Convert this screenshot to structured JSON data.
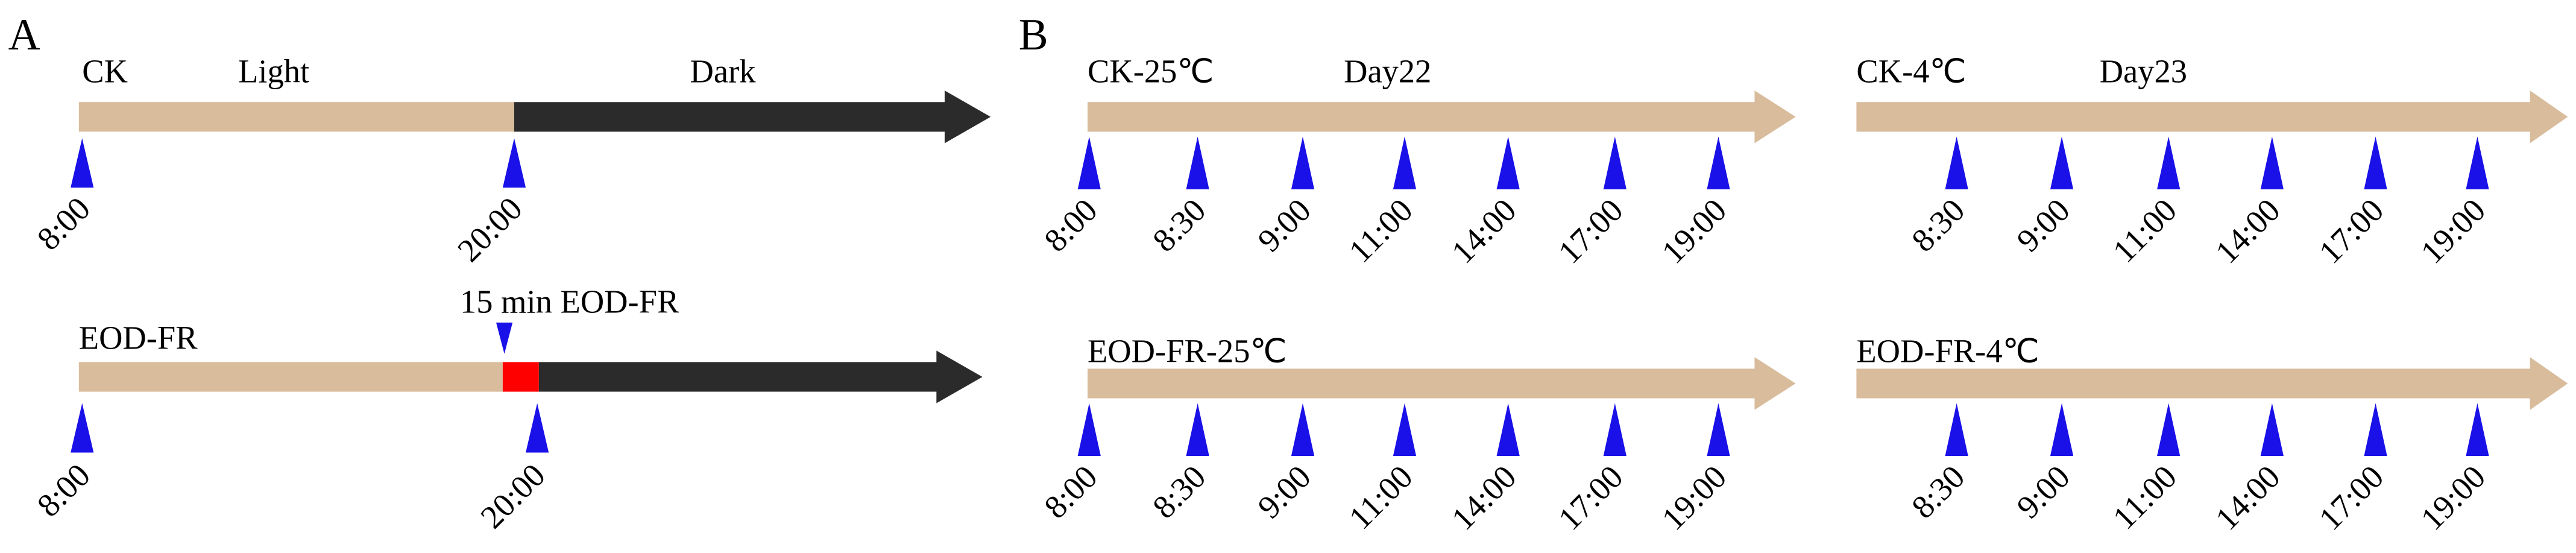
{
  "panel_a": {
    "label": "A",
    "ck": {
      "title": "CK",
      "light": "Light",
      "dark": "Dark",
      "times": [
        "8:00",
        "20:00"
      ]
    },
    "eod_fr": {
      "title": "EOD-FR",
      "treatment": "15 min EOD-FR",
      "times": [
        "8:00",
        "20:00"
      ]
    }
  },
  "panel_b": {
    "label": "B",
    "timelines": [
      {
        "title": "CK-25℃",
        "day": "Day22",
        "times": [
          "8:00",
          "8:30",
          "9:00",
          "11:00",
          "14:00",
          "17:00",
          "19:00"
        ]
      },
      {
        "title": "CK-4℃",
        "day": "Day23",
        "times": [
          "8:30",
          "9:00",
          "11:00",
          "14:00",
          "17:00",
          "19:00"
        ]
      },
      {
        "title": "EOD-FR-25℃",
        "times": [
          "8:00",
          "8:30",
          "9:00",
          "11:00",
          "14:00",
          "17:00",
          "19:00"
        ]
      },
      {
        "title": "EOD-FR-4℃",
        "times": [
          "8:30",
          "9:00",
          "11:00",
          "14:00",
          "17:00",
          "19:00"
        ]
      }
    ]
  }
}
